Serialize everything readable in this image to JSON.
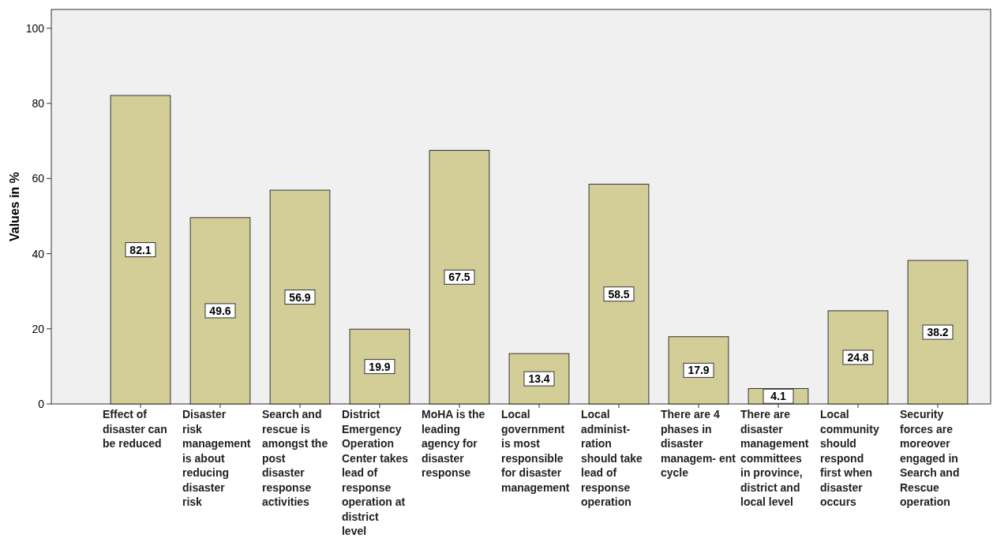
{
  "chart_data": {
    "type": "bar",
    "ylabel": "Values in %",
    "categories": [
      "Effect of disaster can be reduced",
      "Disaster risk management is about reducing disaster risk",
      "Search and rescue is amongst the post disaster response activities",
      "District Emergency Operation Center takes lead of response operation at district level",
      "MoHA is the leading agency for disaster response",
      "Local government is most responsible for disaster management",
      "Local administ- ration should take lead of response operation",
      "There are 4 phases in disaster managem- ent cycle",
      "There are disaster management committees in province, district and local level",
      "Local community should respond first when disaster occurs",
      "Security forces are moreover engaged in Search and Rescue operation"
    ],
    "values": [
      82.1,
      49.6,
      56.9,
      19.9,
      67.5,
      13.4,
      58.5,
      17.9,
      4.1,
      24.8,
      38.2
    ],
    "color": "#d3ce98",
    "ylim": [
      0,
      105
    ],
    "yticks": [
      0,
      20,
      40,
      60,
      80,
      100
    ],
    "data_labels": true,
    "grid": false
  }
}
